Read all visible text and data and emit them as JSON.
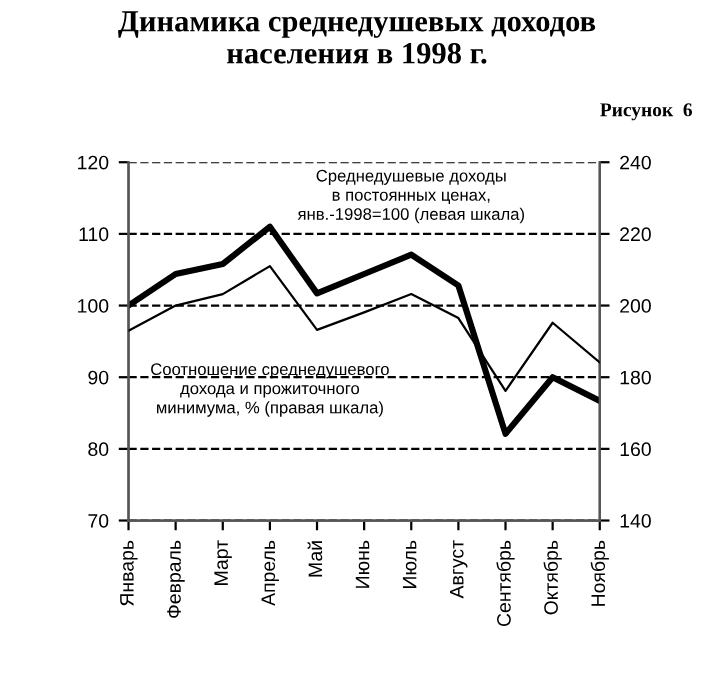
{
  "chart_data": {
    "type": "line",
    "title": "Динамика среднедушевых доходов\nнаселения в 1998 г.",
    "subtitle": "Рисунок  6",
    "categories": [
      "Январь",
      "Февраль",
      "Март",
      "Апрель",
      "Май",
      "Июнь",
      "Июль",
      "Август",
      "Сентябрь",
      "Октябрь",
      "Ноябрь"
    ],
    "series": [
      {
        "color": "#000000",
        "values": [
          100,
          104.4,
          105.8,
          111,
          101.7,
          104.4,
          107.1,
          102.8,
          82.1,
          90,
          86.7
        ]
      },
      {
        "color": "#000000",
        "axis": "y2",
        "values": [
          193,
          200,
          203.2,
          211,
          193.2,
          198.1,
          203.2,
          196.5,
          176.2,
          195.2,
          184.1
        ]
      }
    ],
    "annotations": [
      "Среднедушевые доходы\nв постоянных ценах,\nянв.-1998=100 (левая шкала)",
      "Соотношение среднедушевого\nдохода и прожиточного\nминимума, % (правая шкала)"
    ],
    "ylim": [
      70,
      120
    ],
    "yticks": [
      70,
      80,
      90,
      100,
      110,
      120
    ],
    "y2lim": [
      140,
      240
    ],
    "y2ticks": [
      140,
      160,
      180,
      200,
      220,
      240
    ],
    "grid": "y",
    "line_style": "solid",
    "marker": "none",
    "legend": false
  }
}
